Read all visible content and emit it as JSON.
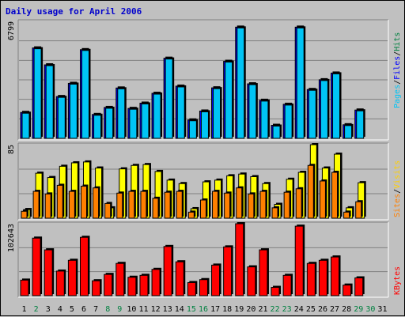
{
  "title": "Daily usage for April 2006",
  "colors": {
    "title": "#0000cc",
    "hits": "#00c4f5",
    "files": "#0000ff",
    "sites": "#ff8000",
    "visits": "#ffff00",
    "kbytes": "#ff0000",
    "legend_hits": "#008040",
    "legend_files": "#0000ff",
    "legend_pages": "#00c4f5",
    "legend_sites": "#ff8000",
    "legend_visits": "#ffd000",
    "legend_kbytes": "#ff0000",
    "weekend_day": "#008040",
    "weekday": "#000000"
  },
  "chart_data": [
    {
      "type": "bar",
      "panel": "top",
      "ymax_label": "6799",
      "ylim": [
        0,
        6799
      ],
      "legend": [
        "Pages",
        "/",
        "Files",
        "/",
        "Hits"
      ],
      "series": [
        {
          "name": "Hits",
          "values": [
            1506,
            5254,
            4271,
            2428,
            3195,
            5154,
            1387,
            1795,
            2925,
            1738,
            2045,
            2617,
            4656,
            3034,
            1069,
            1586,
            2934,
            4477,
            6462,
            3167,
            2211,
            757,
            1979,
            6462,
            2839,
            3405,
            3794,
            789,
            1645
          ]
        },
        {
          "name": "Files",
          "values": [
            1506,
            5254,
            4271,
            2428,
            3195,
            5154,
            1387,
            1795,
            2925,
            1738,
            2045,
            2617,
            4656,
            3034,
            1069,
            1586,
            2934,
            4477,
            6462,
            3167,
            2211,
            757,
            1979,
            6462,
            2839,
            3405,
            3794,
            789,
            1645
          ]
        }
      ]
    },
    {
      "type": "bar",
      "panel": "middle",
      "ymax_label": "85",
      "ylim": [
        0,
        85
      ],
      "legend": [
        "Sites",
        "/",
        "Visits"
      ],
      "series": [
        {
          "name": "Visits",
          "values": [
            10,
            52,
            47,
            60,
            64,
            65,
            58,
            12,
            57,
            61,
            62,
            54,
            44,
            40,
            11,
            42,
            44,
            49,
            51,
            48,
            40,
            16,
            45,
            53,
            85,
            58,
            74,
            12,
            41
          ]
        },
        {
          "name": "Sites",
          "values": [
            8,
            31,
            28,
            38,
            31,
            37,
            35,
            17,
            29,
            31,
            31,
            23,
            30,
            31,
            7,
            21,
            31,
            29,
            35,
            28,
            31,
            12,
            30,
            34,
            61,
            43,
            53,
            7,
            19
          ]
        }
      ]
    },
    {
      "type": "bar",
      "panel": "bottom",
      "ymax_label": "102643",
      "ylim": [
        0,
        102643
      ],
      "legend": [
        "KBytes"
      ],
      "series": [
        {
          "name": "KBytes",
          "values": [
            22158,
            82080,
            65358,
            35064,
            50424,
            83220,
            21242,
            30286,
            46002,
            26246,
            28976,
            37476,
            70148,
            48288,
            18674,
            22860,
            43580,
            69556,
            102643,
            41048,
            65358,
            11828,
            28976,
            99136,
            46002,
            50424,
            55172,
            15074,
            25332
          ]
        }
      ]
    }
  ],
  "days": [
    {
      "label": "1",
      "weekend": false
    },
    {
      "label": "2",
      "weekend": true
    },
    {
      "label": "3",
      "weekend": false
    },
    {
      "label": "4",
      "weekend": false
    },
    {
      "label": "5",
      "weekend": false
    },
    {
      "label": "6",
      "weekend": false
    },
    {
      "label": "7",
      "weekend": false
    },
    {
      "label": "8",
      "weekend": true
    },
    {
      "label": "9",
      "weekend": true
    },
    {
      "label": "10",
      "weekend": false
    },
    {
      "label": "11",
      "weekend": false
    },
    {
      "label": "12",
      "weekend": false
    },
    {
      "label": "13",
      "weekend": false
    },
    {
      "label": "14",
      "weekend": false
    },
    {
      "label": "15",
      "weekend": true
    },
    {
      "label": "16",
      "weekend": true
    },
    {
      "label": "17",
      "weekend": false
    },
    {
      "label": "18",
      "weekend": false
    },
    {
      "label": "19",
      "weekend": false
    },
    {
      "label": "20",
      "weekend": false
    },
    {
      "label": "21",
      "weekend": false
    },
    {
      "label": "22",
      "weekend": true
    },
    {
      "label": "23",
      "weekend": true
    },
    {
      "label": "24",
      "weekend": false
    },
    {
      "label": "25",
      "weekend": false
    },
    {
      "label": "26",
      "weekend": false
    },
    {
      "label": "27",
      "weekend": false
    },
    {
      "label": "28",
      "weekend": false
    },
    {
      "label": "29",
      "weekend": true
    },
    {
      "label": "30",
      "weekend": true
    },
    {
      "label": "31",
      "weekend": false
    }
  ]
}
